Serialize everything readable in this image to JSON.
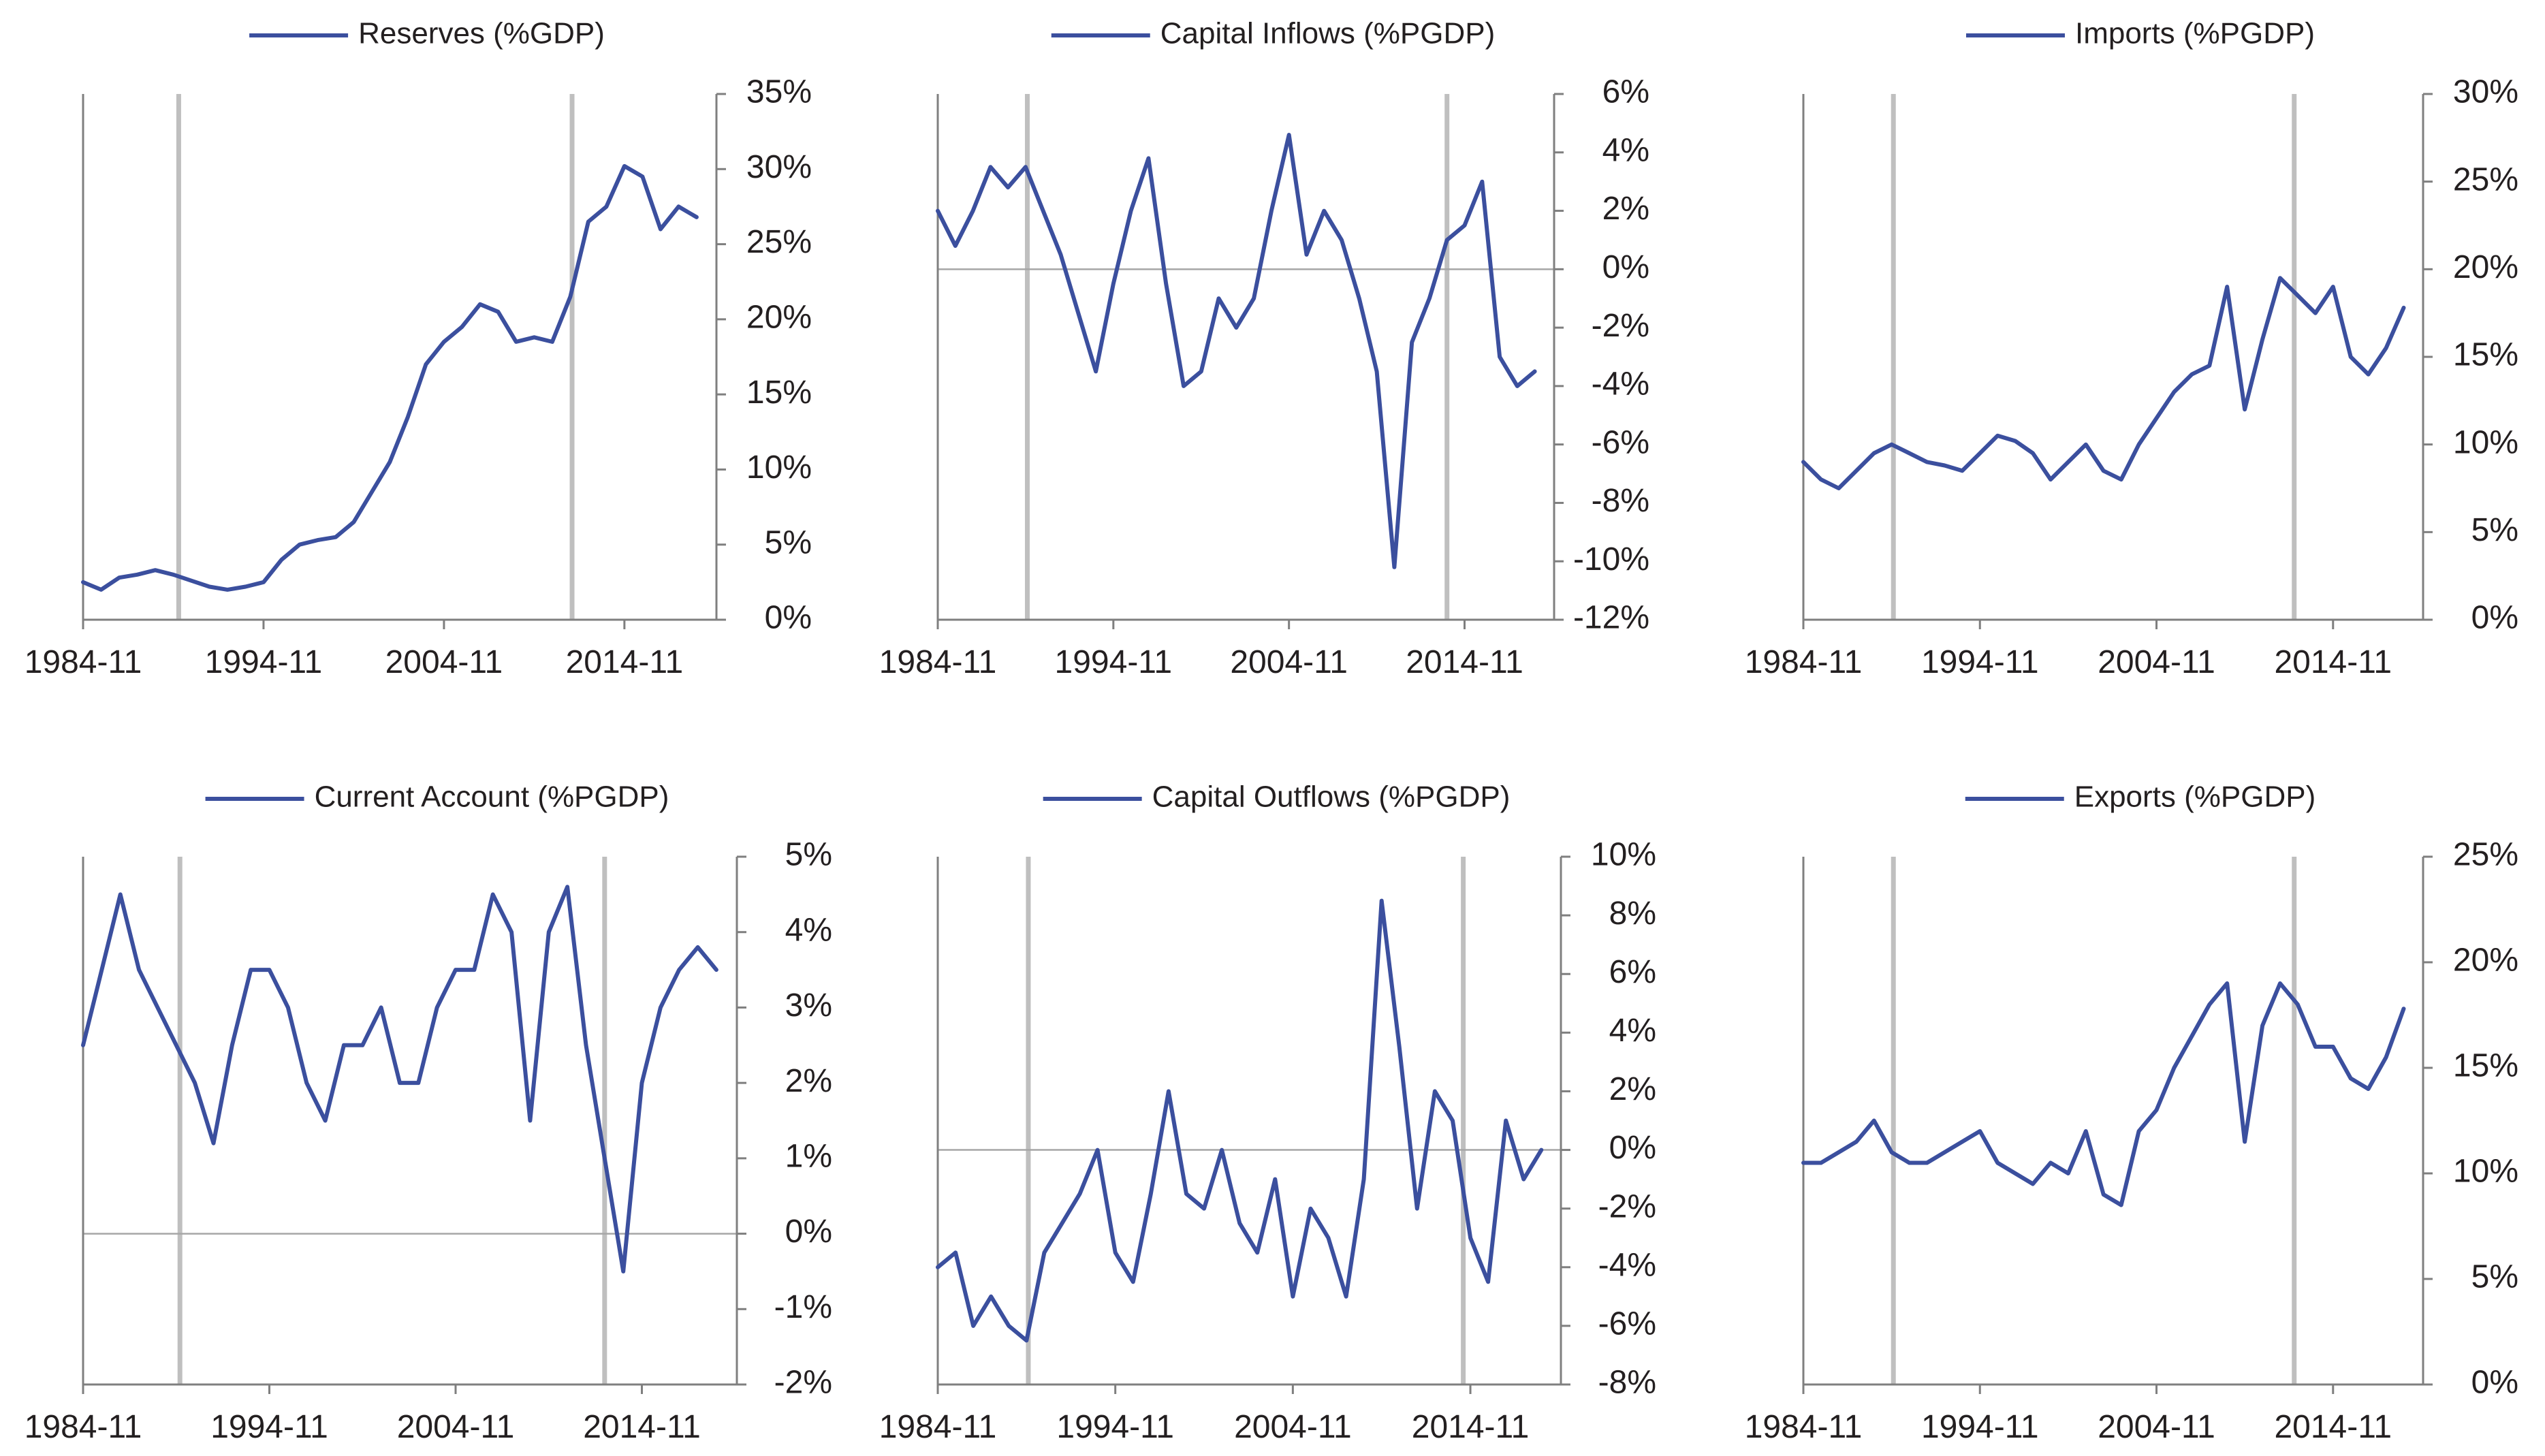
{
  "chart_data": [
    {
      "type": "line",
      "legend": "Reserves (%GDP)",
      "legend_position": "top-center",
      "y_axis_side": "right",
      "x_ticks": [
        "1984-11",
        "1994-11",
        "2004-11",
        "2014-11"
      ],
      "y_ticks": [
        "0%",
        "5%",
        "10%",
        "15%",
        "20%",
        "25%",
        "30%",
        "35%"
      ],
      "xlim": [
        1984.9,
        2020.0
      ],
      "ylim": [
        0,
        35
      ],
      "event_lines": [
        1990.2,
        2012.0
      ],
      "zero_line": false,
      "x": [
        1984.9,
        1985.9,
        1986.9,
        1987.9,
        1988.9,
        1989.9,
        1990.9,
        1991.9,
        1992.9,
        1993.9,
        1994.9,
        1995.9,
        1996.9,
        1997.9,
        1998.9,
        1999.9,
        2000.9,
        2001.9,
        2002.9,
        2003.9,
        2004.9,
        2005.9,
        2006.9,
        2007.9,
        2008.9,
        2009.9,
        2010.9,
        2011.9,
        2012.9,
        2013.9,
        2014.9,
        2015.9,
        2016.9,
        2017.9,
        2018.9
      ],
      "y": [
        2.5,
        2.0,
        2.8,
        3.0,
        3.3,
        3.0,
        2.6,
        2.2,
        2.0,
        2.2,
        2.5,
        4.0,
        5.0,
        5.3,
        5.5,
        6.5,
        8.5,
        10.5,
        13.5,
        17.0,
        18.5,
        19.5,
        21.0,
        20.5,
        18.5,
        18.8,
        18.5,
        21.5,
        26.5,
        27.5,
        30.2,
        29.5,
        26.0,
        27.5,
        26.8
      ],
      "series": [
        {
          "name": "Reserves (%GDP)",
          "color": "#3b4f9e"
        }
      ]
    },
    {
      "type": "line",
      "legend": "Capital Inflows (%PGDP)",
      "legend_position": "top-center",
      "y_axis_side": "right",
      "x_ticks": [
        "1984-11",
        "1994-11",
        "2004-11",
        "2014-11"
      ],
      "y_ticks": [
        "-12%",
        "-10%",
        "-8%",
        "-6%",
        "-4%",
        "-2%",
        "0%",
        "2%",
        "4%",
        "6%"
      ],
      "xlim": [
        1984.9,
        2020.0
      ],
      "ylim": [
        -12,
        6
      ],
      "event_lines": [
        1990.0,
        2013.9
      ],
      "zero_line": true,
      "x": [
        1984.9,
        1985.9,
        1986.9,
        1987.9,
        1988.9,
        1989.9,
        1990.9,
        1991.9,
        1992.9,
        1993.9,
        1994.9,
        1995.9,
        1996.9,
        1997.9,
        1998.9,
        1999.9,
        2000.9,
        2001.9,
        2002.9,
        2003.9,
        2004.9,
        2005.9,
        2006.9,
        2007.9,
        2008.9,
        2009.9,
        2010.9,
        2011.9,
        2012.9,
        2013.9,
        2014.9,
        2015.9,
        2016.9,
        2017.9,
        2018.9
      ],
      "y": [
        2.0,
        0.8,
        2.0,
        3.5,
        2.8,
        3.5,
        2.0,
        0.5,
        -1.5,
        -3.5,
        -0.5,
        2.0,
        3.8,
        -0.5,
        -4.0,
        -3.5,
        -1.0,
        -2.0,
        -1.0,
        2.0,
        4.6,
        0.5,
        2.0,
        1.0,
        -1.0,
        -3.5,
        -10.2,
        -2.5,
        -1.0,
        1.0,
        1.5,
        3.0,
        -3.0,
        -4.0,
        -3.5
      ],
      "series": [
        {
          "name": "Capital Inflows (%PGDP)",
          "color": "#3b4f9e"
        }
      ]
    },
    {
      "type": "line",
      "legend": "Imports (%PGDP)",
      "legend_position": "top-center",
      "y_axis_side": "right",
      "x_ticks": [
        "1984-11",
        "1994-11",
        "2004-11",
        "2014-11"
      ],
      "y_ticks": [
        "0%",
        "5%",
        "10%",
        "15%",
        "20%",
        "25%",
        "30%"
      ],
      "xlim": [
        1984.9,
        2020.0
      ],
      "ylim": [
        0,
        30
      ],
      "event_lines": [
        1990.0,
        2012.7
      ],
      "zero_line": false,
      "x": [
        1984.9,
        1985.9,
        1986.9,
        1987.9,
        1988.9,
        1989.9,
        1990.9,
        1991.9,
        1992.9,
        1993.9,
        1994.9,
        1995.9,
        1996.9,
        1997.9,
        1998.9,
        1999.9,
        2000.9,
        2001.9,
        2002.9,
        2003.9,
        2004.9,
        2005.9,
        2006.9,
        2007.9,
        2008.9,
        2009.9,
        2010.9,
        2011.9,
        2012.9,
        2013.9,
        2014.9,
        2015.9,
        2016.9,
        2017.9,
        2018.9
      ],
      "y": [
        9.0,
        8.0,
        7.5,
        8.5,
        9.5,
        10.0,
        9.5,
        9.0,
        8.8,
        8.5,
        9.5,
        10.5,
        10.2,
        9.5,
        8.0,
        9.0,
        10.0,
        8.5,
        8.0,
        10.0,
        11.5,
        13.0,
        14.0,
        14.5,
        19.0,
        12.0,
        16.0,
        19.5,
        18.5,
        17.5,
        19.0,
        15.0,
        14.0,
        15.5,
        17.8
      ],
      "series": [
        {
          "name": "Imports (%PGDP)",
          "color": "#3b4f9e"
        }
      ]
    },
    {
      "type": "line",
      "legend": "Current Account (%PGDP)",
      "legend_position": "top-center",
      "y_axis_side": "right",
      "x_ticks": [
        "1984-11",
        "1994-11",
        "2004-11",
        "2014-11"
      ],
      "y_ticks": [
        "-2%",
        "-1%",
        "0%",
        "1%",
        "2%",
        "3%",
        "4%",
        "5%"
      ],
      "xlim": [
        1984.9,
        2020.0
      ],
      "ylim": [
        -2,
        5
      ],
      "event_lines": [
        1990.1,
        2012.9
      ],
      "zero_line": true,
      "x": [
        1984.9,
        1985.9,
        1986.9,
        1987.9,
        1988.9,
        1989.9,
        1990.9,
        1991.9,
        1992.9,
        1993.9,
        1994.9,
        1995.9,
        1996.9,
        1997.9,
        1998.9,
        1999.9,
        2000.9,
        2001.9,
        2002.9,
        2003.9,
        2004.9,
        2005.9,
        2006.9,
        2007.9,
        2008.9,
        2009.9,
        2010.9,
        2011.9,
        2012.9,
        2013.9,
        2014.9,
        2015.9,
        2016.9,
        2017.9,
        2018.9
      ],
      "y": [
        2.5,
        3.5,
        4.5,
        3.5,
        3.0,
        2.5,
        2.0,
        1.2,
        2.5,
        3.5,
        3.5,
        3.0,
        2.0,
        1.5,
        2.5,
        2.5,
        3.0,
        2.0,
        2.0,
        3.0,
        3.5,
        3.5,
        4.5,
        4.0,
        1.5,
        4.0,
        4.6,
        2.5,
        1.0,
        -0.5,
        2.0,
        3.0,
        3.5,
        3.8,
        3.5
      ],
      "series": [
        {
          "name": "Current Account (%PGDP)",
          "color": "#3b4f9e"
        }
      ]
    },
    {
      "type": "line",
      "legend": "Capital Outflows (%PGDP)",
      "legend_position": "top-center",
      "y_axis_side": "right",
      "x_ticks": [
        "1984-11",
        "1994-11",
        "2004-11",
        "2014-11"
      ],
      "y_ticks": [
        "-8%",
        "-6%",
        "-4%",
        "-2%",
        "0%",
        "2%",
        "4%",
        "6%",
        "8%",
        "10%"
      ],
      "xlim": [
        1984.9,
        2020.0
      ],
      "ylim": [
        -8,
        10
      ],
      "event_lines": [
        1990.0,
        2014.5
      ],
      "zero_line": true,
      "x": [
        1984.9,
        1985.9,
        1986.9,
        1987.9,
        1988.9,
        1989.9,
        1990.9,
        1991.9,
        1992.9,
        1993.9,
        1994.9,
        1995.9,
        1996.9,
        1997.9,
        1998.9,
        1999.9,
        2000.9,
        2001.9,
        2002.9,
        2003.9,
        2004.9,
        2005.9,
        2006.9,
        2007.9,
        2008.9,
        2009.9,
        2010.9,
        2011.9,
        2012.9,
        2013.9,
        2014.9,
        2015.9,
        2016.9,
        2017.9,
        2018.9
      ],
      "y": [
        -4.0,
        -3.5,
        -6.0,
        -5.0,
        -6.0,
        -6.5,
        -3.5,
        -2.5,
        -1.5,
        0.0,
        -3.5,
        -4.5,
        -1.5,
        2.0,
        -1.5,
        -2.0,
        0.0,
        -2.5,
        -3.5,
        -1.0,
        -5.0,
        -2.0,
        -3.0,
        -5.0,
        -1.0,
        8.5,
        3.5,
        -2.0,
        2.0,
        1.0,
        -3.0,
        -4.5,
        1.0,
        -1.0,
        0.0
      ],
      "series": [
        {
          "name": "Capital Outflows (%PGDP)",
          "color": "#3b4f9e"
        }
      ]
    },
    {
      "type": "line",
      "legend": "Exports (%PGDP)",
      "legend_position": "top-center",
      "y_axis_side": "right",
      "x_ticks": [
        "1984-11",
        "1994-11",
        "2004-11",
        "2014-11"
      ],
      "y_ticks": [
        "0%",
        "5%",
        "10%",
        "15%",
        "20%",
        "25%"
      ],
      "xlim": [
        1984.9,
        2020.0
      ],
      "ylim": [
        0,
        25
      ],
      "event_lines": [
        1990.0,
        2012.7
      ],
      "zero_line": false,
      "x": [
        1984.9,
        1985.9,
        1986.9,
        1987.9,
        1988.9,
        1989.9,
        1990.9,
        1991.9,
        1992.9,
        1993.9,
        1994.9,
        1995.9,
        1996.9,
        1997.9,
        1998.9,
        1999.9,
        2000.9,
        2001.9,
        2002.9,
        2003.9,
        2004.9,
        2005.9,
        2006.9,
        2007.9,
        2008.9,
        2009.9,
        2010.9,
        2011.9,
        2012.9,
        2013.9,
        2014.9,
        2015.9,
        2016.9,
        2017.9,
        2018.9
      ],
      "y": [
        10.5,
        10.5,
        11.0,
        11.5,
        12.5,
        11.0,
        10.5,
        10.5,
        11.0,
        11.5,
        12.0,
        10.5,
        10.0,
        9.5,
        10.5,
        10.0,
        12.0,
        9.0,
        8.5,
        12.0,
        13.0,
        15.0,
        16.5,
        18.0,
        19.0,
        11.5,
        17.0,
        19.0,
        18.0,
        16.0,
        16.0,
        14.5,
        14.0,
        15.5,
        17.8
      ],
      "series": [
        {
          "name": "Exports (%PGDP)",
          "color": "#3b4f9e"
        }
      ]
    }
  ]
}
